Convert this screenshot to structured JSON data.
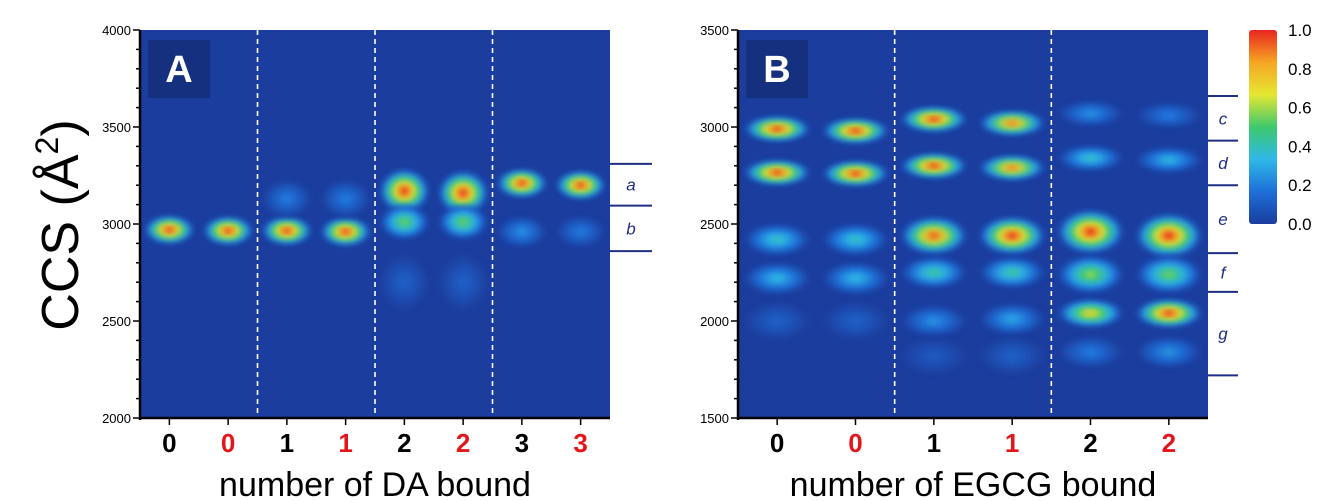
{
  "y_axis_title": "CCS (Å",
  "y_axis_title_sup": "2",
  "y_axis_title_close": ")",
  "chart_data": [
    {
      "type": "heatmap",
      "panel_label": "A",
      "xlabel": "number of DA bound",
      "ylabel": "CCS (Å²)",
      "ylim": [
        2000,
        4000
      ],
      "yticks": [
        2000,
        2500,
        3000,
        3500,
        4000
      ],
      "lanes": [
        {
          "label": "0",
          "label_color": "#000000",
          "peaks": [
            {
              "ccs": 2970,
              "intensity": 1.0,
              "spread": 45
            }
          ]
        },
        {
          "label": "0",
          "label_color": "#e3161b",
          "peaks": [
            {
              "ccs": 2965,
              "intensity": 1.0,
              "spread": 45
            }
          ]
        },
        {
          "label": "1",
          "label_color": "#000000",
          "peaks": [
            {
              "ccs": 2965,
              "intensity": 1.0,
              "spread": 45
            },
            {
              "ccs": 3130,
              "intensity": 0.2,
              "spread": 60
            }
          ]
        },
        {
          "label": "1",
          "label_color": "#e3161b",
          "peaks": [
            {
              "ccs": 2960,
              "intensity": 1.0,
              "spread": 45
            },
            {
              "ccs": 3130,
              "intensity": 0.2,
              "spread": 60
            }
          ]
        },
        {
          "label": "2",
          "label_color": "#000000",
          "peaks": [
            {
              "ccs": 3170,
              "intensity": 1.0,
              "spread": 70
            },
            {
              "ccs": 3010,
              "intensity": 0.55,
              "spread": 55
            },
            {
              "ccs": 2700,
              "intensity": 0.12,
              "spread": 90
            }
          ]
        },
        {
          "label": "2",
          "label_color": "#e3161b",
          "peaks": [
            {
              "ccs": 3160,
              "intensity": 1.0,
              "spread": 70
            },
            {
              "ccs": 3010,
              "intensity": 0.55,
              "spread": 55
            },
            {
              "ccs": 2700,
              "intensity": 0.12,
              "spread": 90
            }
          ]
        },
        {
          "label": "3",
          "label_color": "#000000",
          "peaks": [
            {
              "ccs": 3210,
              "intensity": 1.0,
              "spread": 45
            },
            {
              "ccs": 2960,
              "intensity": 0.25,
              "spread": 50
            }
          ]
        },
        {
          "label": "3",
          "label_color": "#e3161b",
          "peaks": [
            {
              "ccs": 3200,
              "intensity": 1.0,
              "spread": 45
            },
            {
              "ccs": 2960,
              "intensity": 0.2,
              "spread": 50
            }
          ]
        }
      ],
      "dashed_separators_after_lanes": [
        2,
        4,
        6
      ],
      "regions": [
        {
          "name": "a",
          "from": 3095,
          "to": 3310
        },
        {
          "name": "b",
          "from": 2860,
          "to": 3095
        }
      ]
    },
    {
      "type": "heatmap",
      "panel_label": "B",
      "xlabel": "number of EGCG bound",
      "ylabel": "CCS (Å²)",
      "ylim": [
        1500,
        3500
      ],
      "yticks": [
        1500,
        2000,
        2500,
        3000,
        3500
      ],
      "lanes": [
        {
          "label": "0",
          "label_color": "#000000",
          "peaks": [
            {
              "ccs": 2990,
              "intensity": 1.0,
              "spread": 40
            },
            {
              "ccs": 2765,
              "intensity": 1.0,
              "spread": 40
            },
            {
              "ccs": 2420,
              "intensity": 0.4,
              "spread": 50
            },
            {
              "ccs": 2220,
              "intensity": 0.35,
              "spread": 50
            },
            {
              "ccs": 2000,
              "intensity": 0.12,
              "spread": 60
            }
          ]
        },
        {
          "label": "0",
          "label_color": "#e3161b",
          "peaks": [
            {
              "ccs": 2980,
              "intensity": 1.0,
              "spread": 40
            },
            {
              "ccs": 2760,
              "intensity": 1.0,
              "spread": 40
            },
            {
              "ccs": 2420,
              "intensity": 0.4,
              "spread": 50
            },
            {
              "ccs": 2220,
              "intensity": 0.35,
              "spread": 50
            },
            {
              "ccs": 2000,
              "intensity": 0.12,
              "spread": 60
            }
          ]
        },
        {
          "label": "1",
          "label_color": "#000000",
          "peaks": [
            {
              "ccs": 3040,
              "intensity": 1.0,
              "spread": 40
            },
            {
              "ccs": 2800,
              "intensity": 1.0,
              "spread": 40
            },
            {
              "ccs": 2440,
              "intensity": 0.95,
              "spread": 60
            },
            {
              "ccs": 2250,
              "intensity": 0.45,
              "spread": 50
            },
            {
              "ccs": 2000,
              "intensity": 0.25,
              "spread": 50
            },
            {
              "ccs": 1820,
              "intensity": 0.1,
              "spread": 60
            }
          ]
        },
        {
          "label": "1",
          "label_color": "#e3161b",
          "peaks": [
            {
              "ccs": 3020,
              "intensity": 0.9,
              "spread": 40
            },
            {
              "ccs": 2790,
              "intensity": 0.9,
              "spread": 40
            },
            {
              "ccs": 2440,
              "intensity": 1.0,
              "spread": 60
            },
            {
              "ccs": 2250,
              "intensity": 0.45,
              "spread": 50
            },
            {
              "ccs": 2010,
              "intensity": 0.3,
              "spread": 50
            },
            {
              "ccs": 1820,
              "intensity": 0.12,
              "spread": 60
            }
          ]
        },
        {
          "label": "2",
          "label_color": "#000000",
          "peaks": [
            {
              "ccs": 3070,
              "intensity": 0.25,
              "spread": 40
            },
            {
              "ccs": 2840,
              "intensity": 0.4,
              "spread": 40
            },
            {
              "ccs": 2460,
              "intensity": 1.0,
              "spread": 70
            },
            {
              "ccs": 2240,
              "intensity": 0.6,
              "spread": 60
            },
            {
              "ccs": 2040,
              "intensity": 0.75,
              "spread": 45
            },
            {
              "ccs": 1840,
              "intensity": 0.2,
              "spread": 50
            }
          ]
        },
        {
          "label": "2",
          "label_color": "#e3161b",
          "peaks": [
            {
              "ccs": 3060,
              "intensity": 0.2,
              "spread": 40
            },
            {
              "ccs": 2830,
              "intensity": 0.35,
              "spread": 40
            },
            {
              "ccs": 2440,
              "intensity": 1.0,
              "spread": 70
            },
            {
              "ccs": 2240,
              "intensity": 0.55,
              "spread": 60
            },
            {
              "ccs": 2040,
              "intensity": 1.0,
              "spread": 45
            },
            {
              "ccs": 1840,
              "intensity": 0.25,
              "spread": 50
            }
          ]
        }
      ],
      "dashed_separators_after_lanes": [
        2,
        4
      ],
      "regions": [
        {
          "name": "c",
          "from": 2930,
          "to": 3160
        },
        {
          "name": "d",
          "from": 2700,
          "to": 2930
        },
        {
          "name": "e",
          "from": 2350,
          "to": 2700
        },
        {
          "name": "f",
          "from": 2150,
          "to": 2350
        },
        {
          "name": "g",
          "from": 1720,
          "to": 2150
        }
      ]
    }
  ],
  "colorbar": {
    "min": 0.0,
    "max": 1.0,
    "ticks": [
      "0.0",
      "0.2",
      "0.4",
      "0.6",
      "0.8",
      "1.0"
    ],
    "stops": [
      "#1b3d9e",
      "#1e6fd8",
      "#2fb8e8",
      "#3ec96c",
      "#e6e632",
      "#f5a623",
      "#e8251f"
    ]
  },
  "colors": {
    "background": "#1b3d9e",
    "panel_label_box": "#15307f",
    "region_lines": "#1f2f86",
    "red_label": "#e3161b"
  }
}
